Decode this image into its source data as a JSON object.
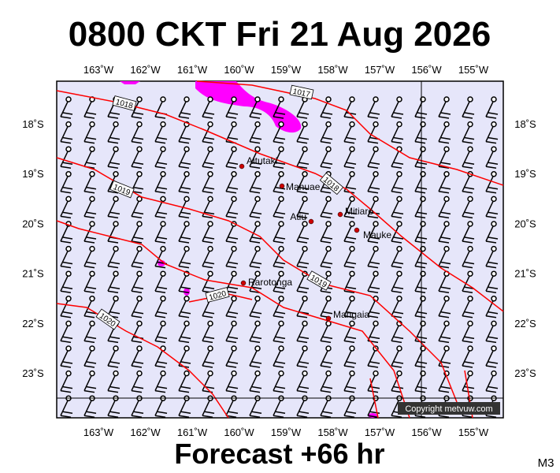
{
  "title": "0800 CKT Fri 21 Aug 2026",
  "footer": "Forecast +66 hr",
  "map_id": "M3",
  "lon_labels": [
    "163˚W",
    "162˚W",
    "161˚W",
    "160˚W",
    "159˚W",
    "158˚W",
    "157˚W",
    "156˚W",
    "155˚W"
  ],
  "lat_labels": [
    "18˚S",
    "19˚S",
    "20˚S",
    "21˚S",
    "22˚S",
    "23˚S"
  ],
  "isobar_labels": [
    "1017",
    "1018",
    "1019",
    "1018",
    "1019",
    "1020",
    "1020"
  ],
  "places": [
    "Aitutaki",
    "Manuae",
    "Atiu",
    "Mitiaro",
    "Mauke",
    "Rarotonga",
    "Mangaia"
  ],
  "copyright": "Copyright metvuw.com"
}
